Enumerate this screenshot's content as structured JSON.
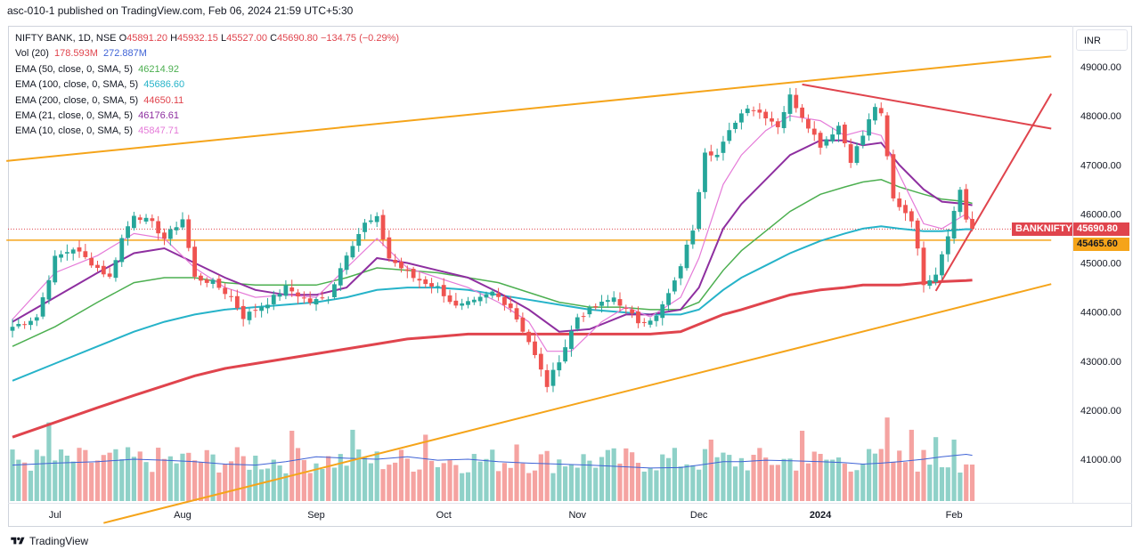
{
  "header": {
    "caption": "asc-010-1 published on TradingView.com, Feb 06, 2024 21:59 UTC+5:30"
  },
  "legend": {
    "main": {
      "symbol": "NIFTY BANK, 1D, NSE",
      "o_label": "O",
      "o": "45891.20",
      "h_label": "H",
      "h": "45932.15",
      "l_label": "L",
      "l": "45527.00",
      "c_label": "C",
      "c": "45690.80",
      "change": "−134.75 (−0.29%)"
    },
    "volume": {
      "label": "Vol (20)",
      "v1": "178.593M",
      "v2": "272.887M"
    },
    "ema50": {
      "label": "EMA (50, close, 0, SMA, 5)",
      "value": "46214.92"
    },
    "ema100": {
      "label": "EMA (100, close, 0, SMA, 5)",
      "value": "45686.60"
    },
    "ema200": {
      "label": "EMA (200, close, 0, SMA, 5)",
      "value": "44650.11"
    },
    "ema21": {
      "label": "EMA (21, close, 0, SMA, 5)",
      "value": "46176.61"
    },
    "ema10": {
      "label": "EMA (10, close, 0, SMA, 5)",
      "value": "45847.71"
    }
  },
  "currency": "INR",
  "tags": {
    "symbol": "BANKNIFTY",
    "price": "45690.80",
    "level": "45465.60"
  },
  "footer": {
    "brand": "TradingView"
  },
  "colors": {
    "up": "#26a69a",
    "down": "#ef5350",
    "up_vol": "#8fd1c8",
    "down_vol": "#f5a3a1",
    "ema10": "#e57ad8",
    "ema21": "#8e2fa0",
    "ema50": "#4caf50",
    "ema100": "#26b3c9",
    "ema200": "#e0444d",
    "trend_orange": "#f5a41a",
    "trend_red": "#e0444d",
    "vol_ma": "#3f63d6"
  },
  "chart_data": {
    "type": "candlestick",
    "symbol": "NIFTY BANK",
    "interval": "1D",
    "y_axis": {
      "ticks": [
        41000,
        42000,
        43000,
        44000,
        45000,
        46000,
        47000,
        48000,
        49000
      ],
      "tick_labels": [
        "41000.00",
        "42000.00",
        "43000.00",
        "44000.00",
        "45000.00",
        "46000.00",
        "47000.00",
        "48000.00",
        "49000.00"
      ],
      "range": [
        40000,
        49800
      ],
      "side": "right"
    },
    "x_axis": {
      "labels": [
        {
          "text": "Jul",
          "bar": 7,
          "bold": false
        },
        {
          "text": "Aug",
          "bar": 28,
          "bold": false
        },
        {
          "text": "Sep",
          "bar": 50,
          "bold": false
        },
        {
          "text": "Oct",
          "bar": 71,
          "bold": false
        },
        {
          "text": "Nov",
          "bar": 93,
          "bold": false
        },
        {
          "text": "Dec",
          "bar": 113,
          "bold": false
        },
        {
          "text": "2024",
          "bar": 133,
          "bold": true
        },
        {
          "text": "Feb",
          "bar": 155,
          "bold": false
        }
      ]
    },
    "bar_count": 159,
    "candle_keypoints": [
      [
        0,
        43700
      ],
      [
        4,
        43900
      ],
      [
        7,
        45100
      ],
      [
        10,
        45300
      ],
      [
        14,
        44900
      ],
      [
        16,
        44700
      ],
      [
        18,
        45500
      ],
      [
        20,
        46000
      ],
      [
        23,
        45800
      ],
      [
        25,
        45500
      ],
      [
        28,
        45900
      ],
      [
        30,
        44700
      ],
      [
        33,
        44600
      ],
      [
        36,
        44300
      ],
      [
        38,
        43900
      ],
      [
        42,
        44200
      ],
      [
        45,
        44500
      ],
      [
        49,
        44200
      ],
      [
        52,
        44300
      ],
      [
        55,
        45200
      ],
      [
        58,
        45800
      ],
      [
        60,
        45900
      ],
      [
        62,
        45100
      ],
      [
        66,
        44700
      ],
      [
        70,
        44500
      ],
      [
        73,
        44100
      ],
      [
        76,
        44200
      ],
      [
        79,
        44400
      ],
      [
        82,
        44100
      ],
      [
        85,
        43400
      ],
      [
        88,
        42500
      ],
      [
        91,
        43300
      ],
      [
        93,
        43900
      ],
      [
        96,
        44100
      ],
      [
        99,
        44300
      ],
      [
        103,
        43800
      ],
      [
        106,
        43900
      ],
      [
        109,
        44600
      ],
      [
        112,
        45700
      ],
      [
        114,
        47300
      ],
      [
        116,
        47200
      ],
      [
        119,
        47900
      ],
      [
        121,
        48200
      ],
      [
        124,
        48000
      ],
      [
        126,
        47800
      ],
      [
        128,
        48400
      ],
      [
        130,
        48000
      ],
      [
        133,
        47400
      ],
      [
        136,
        47800
      ],
      [
        138,
        47100
      ],
      [
        140,
        47600
      ],
      [
        142,
        48200
      ],
      [
        143,
        48000
      ],
      [
        145,
        46300
      ],
      [
        148,
        45900
      ],
      [
        150,
        44600
      ],
      [
        152,
        44800
      ],
      [
        154,
        45600
      ],
      [
        156,
        46500
      ],
      [
        157,
        45900
      ],
      [
        158,
        45690
      ]
    ],
    "ema10": [
      [
        0,
        43850
      ],
      [
        7,
        44800
      ],
      [
        14,
        45150
      ],
      [
        20,
        45600
      ],
      [
        25,
        45500
      ],
      [
        30,
        44900
      ],
      [
        35,
        44500
      ],
      [
        40,
        44300
      ],
      [
        45,
        44350
      ],
      [
        50,
        44300
      ],
      [
        55,
        44900
      ],
      [
        60,
        45500
      ],
      [
        65,
        44900
      ],
      [
        70,
        44700
      ],
      [
        75,
        44500
      ],
      [
        80,
        44200
      ],
      [
        85,
        43800
      ],
      [
        88,
        43200
      ],
      [
        92,
        43200
      ],
      [
        97,
        43800
      ],
      [
        101,
        44100
      ],
      [
        105,
        43900
      ],
      [
        110,
        44300
      ],
      [
        113,
        45100
      ],
      [
        117,
        46600
      ],
      [
        120,
        47200
      ],
      [
        124,
        47700
      ],
      [
        128,
        48000
      ],
      [
        133,
        47900
      ],
      [
        137,
        47600
      ],
      [
        140,
        47700
      ],
      [
        143,
        47600
      ],
      [
        146,
        46800
      ],
      [
        150,
        45800
      ],
      [
        153,
        45700
      ],
      [
        157,
        46000
      ],
      [
        158,
        45848
      ]
    ],
    "ema21": [
      [
        0,
        43800
      ],
      [
        7,
        44300
      ],
      [
        14,
        44800
      ],
      [
        20,
        45200
      ],
      [
        25,
        45300
      ],
      [
        30,
        45000
      ],
      [
        35,
        44700
      ],
      [
        40,
        44450
      ],
      [
        45,
        44350
      ],
      [
        50,
        44350
      ],
      [
        55,
        44500
      ],
      [
        60,
        45100
      ],
      [
        65,
        45000
      ],
      [
        70,
        44850
      ],
      [
        75,
        44700
      ],
      [
        80,
        44400
      ],
      [
        85,
        44050
      ],
      [
        90,
        43600
      ],
      [
        95,
        43650
      ],
      [
        101,
        43950
      ],
      [
        105,
        43950
      ],
      [
        110,
        44050
      ],
      [
        113,
        44500
      ],
      [
        117,
        45700
      ],
      [
        120,
        46200
      ],
      [
        124,
        46700
      ],
      [
        128,
        47200
      ],
      [
        133,
        47500
      ],
      [
        137,
        47500
      ],
      [
        140,
        47400
      ],
      [
        143,
        47450
      ],
      [
        146,
        47000
      ],
      [
        150,
        46500
      ],
      [
        153,
        46250
      ],
      [
        157,
        46200
      ],
      [
        158,
        46177
      ]
    ],
    "ema50": [
      [
        0,
        43300
      ],
      [
        7,
        43700
      ],
      [
        14,
        44200
      ],
      [
        20,
        44600
      ],
      [
        25,
        44700
      ],
      [
        30,
        44700
      ],
      [
        35,
        44600
      ],
      [
        40,
        44550
      ],
      [
        45,
        44550
      ],
      [
        50,
        44550
      ],
      [
        55,
        44700
      ],
      [
        60,
        44900
      ],
      [
        65,
        44850
      ],
      [
        70,
        44800
      ],
      [
        75,
        44700
      ],
      [
        80,
        44600
      ],
      [
        85,
        44400
      ],
      [
        90,
        44200
      ],
      [
        95,
        44100
      ],
      [
        100,
        44100
      ],
      [
        105,
        44050
      ],
      [
        110,
        44050
      ],
      [
        113,
        44200
      ],
      [
        117,
        44850
      ],
      [
        120,
        45250
      ],
      [
        124,
        45650
      ],
      [
        128,
        46050
      ],
      [
        133,
        46400
      ],
      [
        137,
        46550
      ],
      [
        140,
        46650
      ],
      [
        143,
        46700
      ],
      [
        146,
        46550
      ],
      [
        150,
        46400
      ],
      [
        153,
        46300
      ],
      [
        157,
        46250
      ],
      [
        158,
        46215
      ]
    ],
    "ema100": [
      [
        0,
        42600
      ],
      [
        7,
        42950
      ],
      [
        14,
        43300
      ],
      [
        20,
        43600
      ],
      [
        25,
        43800
      ],
      [
        30,
        43950
      ],
      [
        35,
        44050
      ],
      [
        40,
        44100
      ],
      [
        45,
        44150
      ],
      [
        50,
        44200
      ],
      [
        55,
        44300
      ],
      [
        60,
        44450
      ],
      [
        65,
        44500
      ],
      [
        70,
        44500
      ],
      [
        75,
        44450
      ],
      [
        80,
        44350
      ],
      [
        85,
        44250
      ],
      [
        90,
        44150
      ],
      [
        95,
        44050
      ],
      [
        100,
        44000
      ],
      [
        105,
        43950
      ],
      [
        110,
        43950
      ],
      [
        113,
        44050
      ],
      [
        117,
        44450
      ],
      [
        120,
        44700
      ],
      [
        124,
        44950
      ],
      [
        128,
        45200
      ],
      [
        133,
        45450
      ],
      [
        137,
        45600
      ],
      [
        140,
        45700
      ],
      [
        143,
        45750
      ],
      [
        146,
        45700
      ],
      [
        150,
        45650
      ],
      [
        153,
        45650
      ],
      [
        157,
        45690
      ],
      [
        158,
        45687
      ]
    ],
    "ema200": [
      [
        0,
        41450
      ],
      [
        7,
        41750
      ],
      [
        14,
        42050
      ],
      [
        20,
        42300
      ],
      [
        25,
        42500
      ],
      [
        30,
        42700
      ],
      [
        35,
        42850
      ],
      [
        40,
        42950
      ],
      [
        45,
        43050
      ],
      [
        50,
        43150
      ],
      [
        55,
        43250
      ],
      [
        60,
        43350
      ],
      [
        65,
        43450
      ],
      [
        70,
        43500
      ],
      [
        75,
        43550
      ],
      [
        80,
        43550
      ],
      [
        85,
        43550
      ],
      [
        90,
        43550
      ],
      [
        95,
        43550
      ],
      [
        100,
        43550
      ],
      [
        105,
        43550
      ],
      [
        110,
        43600
      ],
      [
        113,
        43750
      ],
      [
        117,
        43950
      ],
      [
        120,
        44050
      ],
      [
        124,
        44200
      ],
      [
        128,
        44350
      ],
      [
        133,
        44450
      ],
      [
        137,
        44500
      ],
      [
        140,
        44550
      ],
      [
        143,
        44550
      ],
      [
        146,
        44550
      ],
      [
        150,
        44600
      ],
      [
        153,
        44620
      ],
      [
        157,
        44640
      ],
      [
        158,
        44650
      ]
    ],
    "trendlines": [
      {
        "color": "orange",
        "from": [
          -1,
          47080
        ],
        "to": [
          171,
          49210
        ]
      },
      {
        "color": "orange",
        "from": [
          15,
          39700
        ],
        "to": [
          171,
          44570
        ]
      },
      {
        "color": "orange_flat",
        "from": [
          -1,
          45465
        ],
        "to": [
          171,
          45465
        ]
      },
      {
        "color": "red",
        "from": [
          130,
          48640
        ],
        "to": [
          171,
          47740
        ]
      },
      {
        "color": "red",
        "from": [
          152,
          44430
        ],
        "to": [
          171,
          48450
        ]
      }
    ],
    "volume_ma": [
      [
        0,
        40880
      ],
      [
        7,
        40920
      ],
      [
        14,
        40950
      ],
      [
        20,
        41000
      ],
      [
        25,
        40980
      ],
      [
        30,
        40950
      ],
      [
        35,
        40900
      ],
      [
        40,
        40880
      ],
      [
        45,
        40950
      ],
      [
        50,
        41050
      ],
      [
        55,
        41020
      ],
      [
        60,
        41000
      ],
      [
        65,
        41050
      ],
      [
        70,
        40980
      ],
      [
        75,
        41000
      ],
      [
        80,
        40950
      ],
      [
        85,
        40920
      ],
      [
        90,
        40900
      ],
      [
        95,
        40880
      ],
      [
        100,
        40850
      ],
      [
        105,
        40820
      ],
      [
        110,
        40830
      ],
      [
        113,
        40880
      ],
      [
        117,
        40950
      ],
      [
        120,
        40950
      ],
      [
        124,
        40980
      ],
      [
        128,
        40970
      ],
      [
        133,
        40950
      ],
      [
        137,
        40930
      ],
      [
        140,
        40900
      ],
      [
        143,
        40920
      ],
      [
        146,
        40950
      ],
      [
        150,
        41000
      ],
      [
        153,
        41050
      ],
      [
        157,
        41100
      ],
      [
        158,
        41080
      ]
    ],
    "volume_spikes": [
      [
        6,
        41750
      ],
      [
        46,
        41580
      ],
      [
        56,
        41600
      ],
      [
        68,
        41500
      ],
      [
        83,
        41300
      ],
      [
        115,
        41400
      ],
      [
        130,
        41580
      ],
      [
        144,
        41850
      ],
      [
        148,
        41600
      ],
      [
        152,
        41450
      ],
      [
        155,
        41400
      ]
    ]
  }
}
